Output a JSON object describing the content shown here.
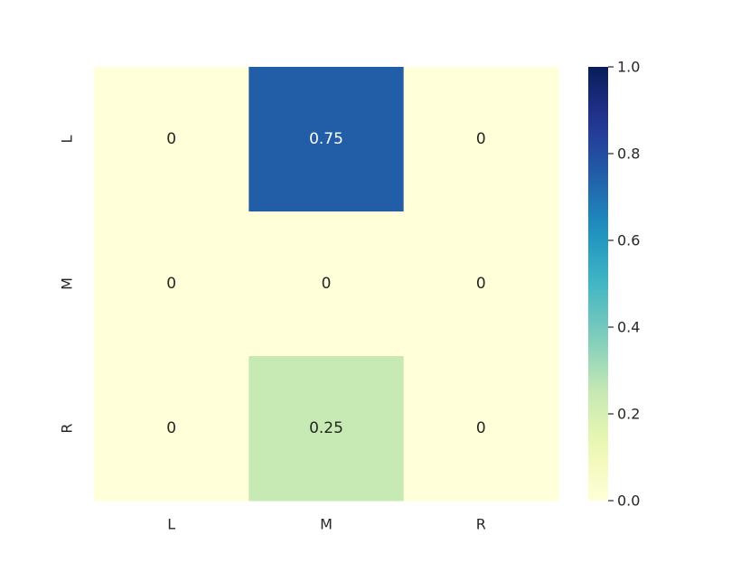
{
  "chart_data": {
    "type": "heatmap",
    "title": "",
    "xlabel": "",
    "ylabel": "",
    "x_categories": [
      "L",
      "M",
      "R"
    ],
    "y_categories": [
      "L",
      "M",
      "R"
    ],
    "values": [
      [
        0,
        0.75,
        0
      ],
      [
        0,
        0,
        0
      ],
      [
        0,
        0.25,
        0
      ]
    ],
    "cell_labels": [
      [
        "0",
        "0.75",
        "0"
      ],
      [
        "0",
        "0",
        "0"
      ],
      [
        "0",
        "0.25",
        "0"
      ]
    ],
    "colormap": "YlGnBu",
    "vmin": 0,
    "vmax": 1,
    "colorbar_ticks": [
      0.0,
      0.2,
      0.4,
      0.6,
      0.8,
      1.0
    ],
    "colorbar_tick_labels": [
      "0.0",
      "0.2",
      "0.4",
      "0.6",
      "0.8",
      "1.0"
    ],
    "colorbar_placement": "right",
    "grid": false
  }
}
